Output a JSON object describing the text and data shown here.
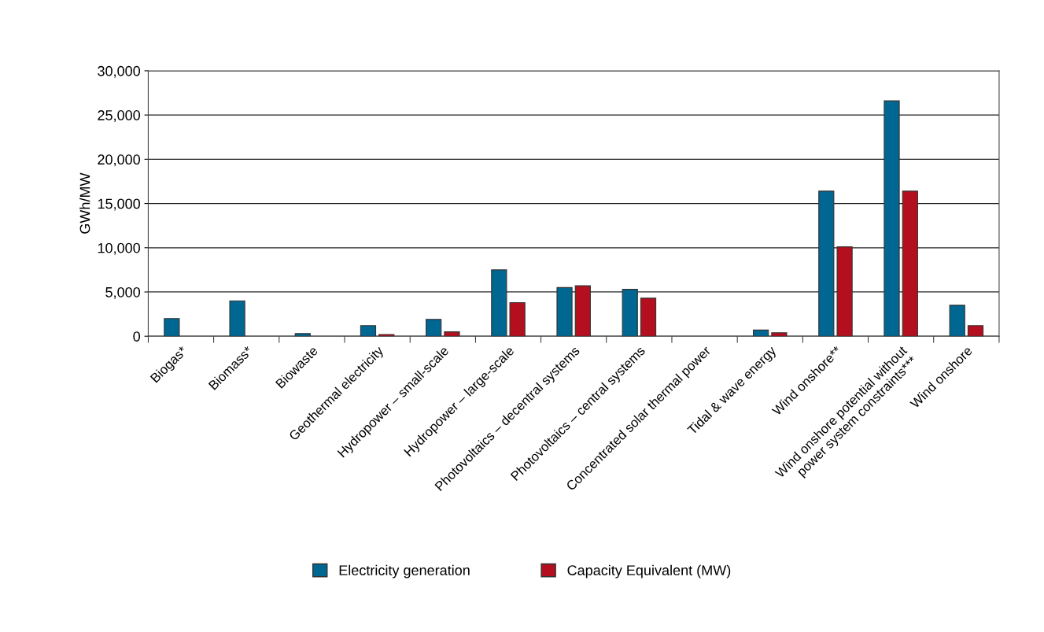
{
  "chart_data": {
    "type": "bar",
    "ylabel": "GWh/MW",
    "categories": [
      "Biogas*",
      "Biomass*",
      "Biowaste",
      "Geothermal electricity",
      "Hydropower – small-scale",
      "Hydropower – large-scale",
      "Photovoltaics – decentral systems",
      "Photovoltaics – central systems",
      "Concentrated solar thermal power",
      "Tidal & wave energy",
      "Wind onshore**",
      "Wind onshore potential without\npower system constraints***",
      "Wind onshore"
    ],
    "series": [
      {
        "name": "Electricity generation",
        "color": "#006792",
        "values": [
          2000,
          4000,
          300,
          1200,
          1900,
          7500,
          5500,
          5300,
          null,
          700,
          16400,
          26600,
          3500
        ]
      },
      {
        "name": "Capacity Equivalent (MW)",
        "color": "#b40f1e",
        "values": [
          null,
          null,
          null,
          200,
          500,
          3800,
          5700,
          4300,
          null,
          400,
          10100,
          16400,
          1200
        ]
      }
    ],
    "ylim": [
      0,
      30000
    ],
    "yticks": [
      {
        "value": 0,
        "label": "0"
      },
      {
        "value": 5000,
        "label": "5,000"
      },
      {
        "value": 10000,
        "label": "10,000"
      },
      {
        "value": 15000,
        "label": "15,000"
      },
      {
        "value": 20000,
        "label": "20,000"
      },
      {
        "value": 25000,
        "label": "25,000"
      },
      {
        "value": 30000,
        "label": "30,000"
      }
    ],
    "grid": "y",
    "legend": "bottom"
  }
}
